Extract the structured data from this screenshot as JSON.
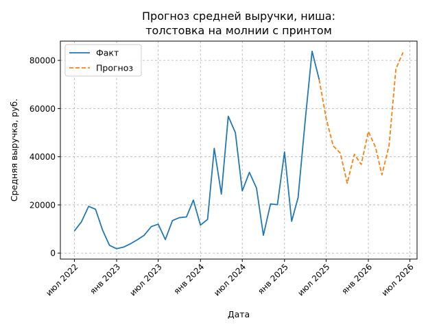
{
  "chart_data": {
    "type": "line",
    "title_lines": [
      "Прогноз средней выручки, ниша:",
      "толстовка на молнии с принтом"
    ],
    "xlabel": "Дата",
    "ylabel": "Средняя выручка, руб.",
    "grid": true,
    "legend_position": "top-left",
    "x_ticks": [
      {
        "date": "2022-07-01",
        "label": "июл 2022"
      },
      {
        "date": "2023-01-01",
        "label": "янв 2023"
      },
      {
        "date": "2023-07-01",
        "label": "июл 2023"
      },
      {
        "date": "2024-01-01",
        "label": "янв 2024"
      },
      {
        "date": "2024-07-01",
        "label": "июл 2024"
      },
      {
        "date": "2025-01-01",
        "label": "янв 2025"
      },
      {
        "date": "2025-07-01",
        "label": "июл 2025"
      },
      {
        "date": "2026-01-01",
        "label": "янв 2026"
      },
      {
        "date": "2026-07-01",
        "label": "июл 2026"
      }
    ],
    "y_ticks": [
      0,
      20000,
      40000,
      60000,
      80000
    ],
    "xlim": [
      "2022-05-01",
      "2026-08-01"
    ],
    "ylim": [
      -2500,
      88000
    ],
    "series": [
      {
        "name": "Факт",
        "color": "#1f77b4",
        "style": "solid",
        "points": [
          [
            "2022-07-01",
            9200
          ],
          [
            "2022-08-01",
            13000
          ],
          [
            "2022-09-01",
            19400
          ],
          [
            "2022-10-01",
            18200
          ],
          [
            "2022-11-01",
            9500
          ],
          [
            "2022-12-01",
            3200
          ],
          [
            "2023-01-01",
            1800
          ],
          [
            "2023-02-01",
            2500
          ],
          [
            "2023-03-01",
            3800
          ],
          [
            "2023-04-01",
            5500
          ],
          [
            "2023-05-01",
            7400
          ],
          [
            "2023-06-01",
            11000
          ],
          [
            "2023-07-01",
            12000
          ],
          [
            "2023-08-01",
            5600
          ],
          [
            "2023-09-01",
            13500
          ],
          [
            "2023-10-01",
            14700
          ],
          [
            "2023-11-01",
            15000
          ],
          [
            "2023-12-01",
            22000
          ],
          [
            "2024-01-01",
            11600
          ],
          [
            "2024-02-01",
            14000
          ],
          [
            "2024-03-01",
            43500
          ],
          [
            "2024-04-01",
            24500
          ],
          [
            "2024-05-01",
            56800
          ],
          [
            "2024-06-01",
            50000
          ],
          [
            "2024-07-01",
            25800
          ],
          [
            "2024-08-01",
            33500
          ],
          [
            "2024-09-01",
            27000
          ],
          [
            "2024-10-01",
            7400
          ],
          [
            "2024-11-01",
            20400
          ],
          [
            "2024-12-01",
            20100
          ],
          [
            "2025-01-01",
            42000
          ],
          [
            "2025-02-01",
            13200
          ],
          [
            "2025-03-01",
            23000
          ],
          [
            "2025-04-01",
            55000
          ],
          [
            "2025-05-01",
            83800
          ],
          [
            "2025-06-01",
            72000
          ]
        ]
      },
      {
        "name": "Прогноз",
        "color": "#ff7f0e",
        "style": "dashed",
        "points": [
          [
            "2025-06-01",
            72000
          ],
          [
            "2025-07-01",
            56000
          ],
          [
            "2025-08-01",
            44500
          ],
          [
            "2025-09-01",
            41500
          ],
          [
            "2025-10-01",
            29000
          ],
          [
            "2025-11-01",
            41000
          ],
          [
            "2025-12-01",
            36800
          ],
          [
            "2026-01-01",
            50500
          ],
          [
            "2026-02-01",
            44000
          ],
          [
            "2026-03-01",
            32500
          ],
          [
            "2026-04-01",
            44500
          ],
          [
            "2026-05-01",
            76500
          ],
          [
            "2026-06-01",
            83300
          ]
        ]
      }
    ]
  }
}
